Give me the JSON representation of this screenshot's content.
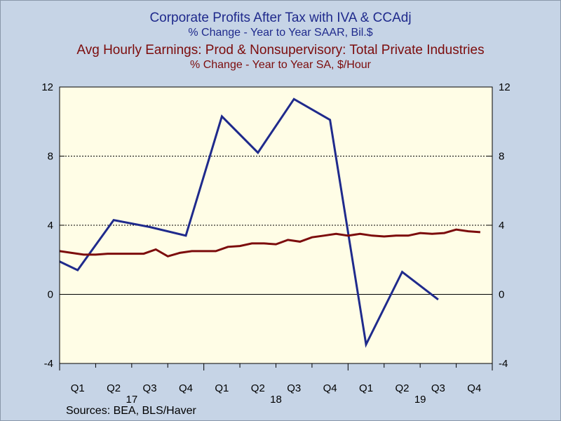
{
  "titles": {
    "series1": "Corporate Profits After Tax with IVA & CCAdj",
    "series1_sub": "% Change - Year to Year    SAAR, Bil.$",
    "series2": "Avg Hourly Earnings: Prod & Nonsupervisory: Total Private Industries",
    "series2_sub": "% Change - Year to Year    SA, $/Hour"
  },
  "sources": "Sources:  BEA, BLS/Haver",
  "colors": {
    "background": "#c6d4e6",
    "plot_background": "#fffde6",
    "series1": "#1f2a8c",
    "series2": "#7c0c0c"
  },
  "chart_data": {
    "type": "line",
    "ylim": [
      -4,
      12
    ],
    "yticks": [
      -4,
      0,
      4,
      8,
      12
    ],
    "y2ticks": [
      -4,
      0,
      4,
      8,
      12
    ],
    "gridlines_at": [
      0,
      4,
      8
    ],
    "x_range": [
      2017.0,
      2020.0
    ],
    "quarter_labels": [
      "Q1",
      "Q2",
      "Q3",
      "Q4",
      "Q1",
      "Q2",
      "Q3",
      "Q4",
      "Q1",
      "Q2",
      "Q3",
      "Q4"
    ],
    "year_labels": [
      "17",
      "18",
      "19"
    ],
    "series": [
      {
        "color": "#1f2a8c",
        "axis": "left",
        "x": [
          2016.875,
          2017.125,
          2017.375,
          2017.625,
          2017.875,
          2018.125,
          2018.375,
          2018.625,
          2018.875,
          2019.125,
          2019.375,
          2019.625
        ],
        "values": [
          2.4,
          1.4,
          4.3,
          3.9,
          3.4,
          10.3,
          8.2,
          11.3,
          10.1,
          -2.9,
          1.3,
          -0.3
        ]
      },
      {
        "color": "#7c0c0c",
        "axis": "right",
        "x": [
          2017.0,
          2017.083,
          2017.167,
          2017.25,
          2017.333,
          2017.417,
          2017.5,
          2017.583,
          2017.667,
          2017.75,
          2017.833,
          2017.917,
          2018.0,
          2018.083,
          2018.167,
          2018.25,
          2018.333,
          2018.417,
          2018.5,
          2018.583,
          2018.667,
          2018.75,
          2018.833,
          2018.917,
          2019.0,
          2019.083,
          2019.167,
          2019.25,
          2019.333,
          2019.417,
          2019.5,
          2019.583,
          2019.667,
          2019.75,
          2019.833,
          2019.917
        ],
        "values": [
          2.5,
          2.4,
          2.3,
          2.3,
          2.35,
          2.35,
          2.35,
          2.35,
          2.6,
          2.2,
          2.4,
          2.5,
          2.5,
          2.5,
          2.75,
          2.8,
          2.95,
          2.95,
          2.9,
          3.15,
          3.05,
          3.3,
          3.4,
          3.5,
          3.4,
          3.5,
          3.4,
          3.35,
          3.4,
          3.4,
          3.55,
          3.5,
          3.55,
          3.75,
          3.65,
          3.6
        ]
      }
    ]
  }
}
